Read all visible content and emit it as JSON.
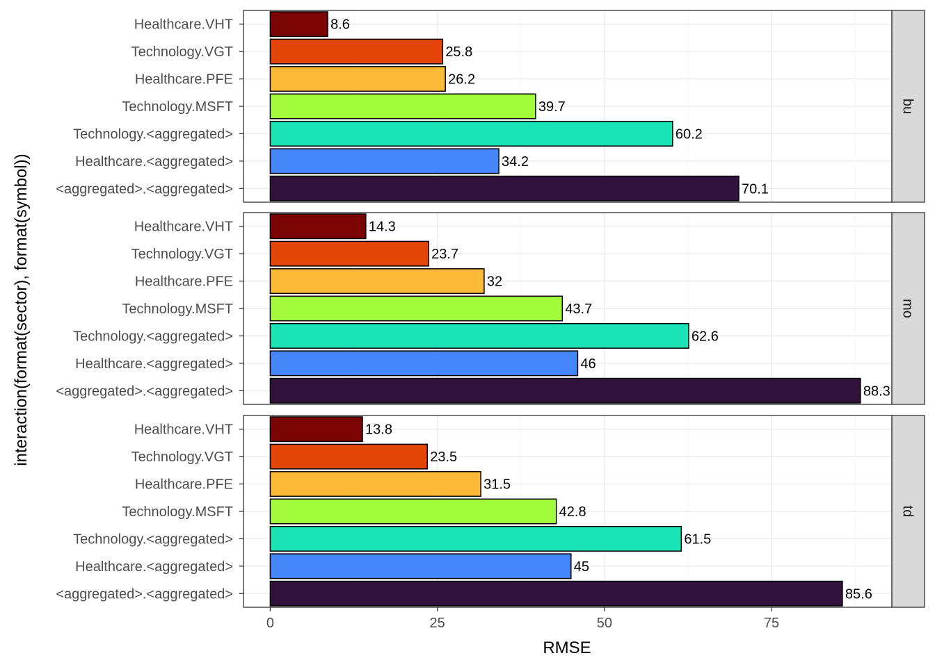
{
  "chart_data": {
    "type": "bar",
    "orientation": "horizontal",
    "xlabel": "RMSE",
    "ylabel": "interaction(format(sector), format(symbol))",
    "xlim": [
      -4,
      93
    ],
    "xticks": [
      0,
      25,
      50,
      75
    ],
    "grid": true,
    "categories": [
      "Healthcare.VHT",
      "Technology.VGT",
      "Healthcare.PFE",
      "Technology.MSFT",
      "Technology.<aggregated>",
      "Healthcare.<aggregated>",
      "<aggregated>.<aggregated>"
    ],
    "colors": [
      "#7a0403",
      "#e4460a",
      "#fbb938",
      "#a2fc3c",
      "#1ae4b6",
      "#4686fb",
      "#30123b"
    ],
    "panels": [
      {
        "name": "bu",
        "values": [
          8.6,
          25.8,
          26.2,
          39.7,
          60.2,
          34.2,
          70.1
        ],
        "labels": [
          "8.6",
          "25.8",
          "26.2",
          "39.7",
          "60.2",
          "34.2",
          "70.1"
        ]
      },
      {
        "name": "mo",
        "values": [
          14.3,
          23.7,
          32,
          43.7,
          62.6,
          46,
          88.3
        ],
        "labels": [
          "14.3",
          "23.7",
          "32",
          "43.7",
          "62.6",
          "46",
          "88.3"
        ]
      },
      {
        "name": "td",
        "values": [
          13.8,
          23.5,
          31.5,
          42.8,
          61.5,
          45,
          85.6
        ],
        "labels": [
          "13.8",
          "23.5",
          "31.5",
          "42.8",
          "61.5",
          "45",
          "85.6"
        ]
      }
    ]
  }
}
